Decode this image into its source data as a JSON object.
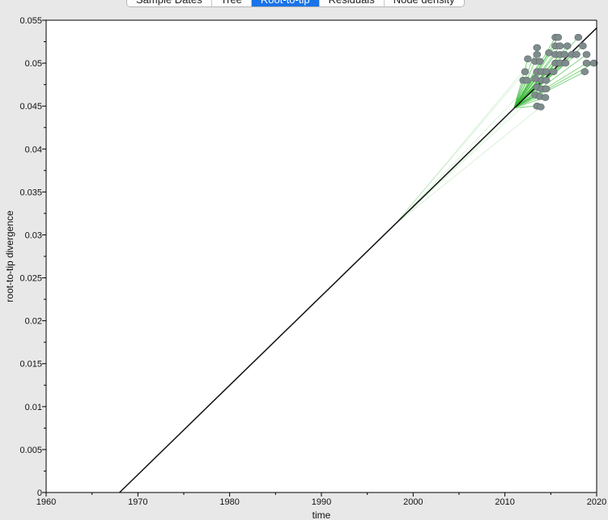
{
  "tabs": [
    {
      "label": "Sample Dates",
      "active": false
    },
    {
      "label": "Tree",
      "active": false
    },
    {
      "label": "Root-to-tip",
      "active": true
    },
    {
      "label": "Residuals",
      "active": false
    },
    {
      "label": "Node density",
      "active": false
    }
  ],
  "chart_data": {
    "type": "scatter",
    "xlabel": "time",
    "ylabel": "root-to-tip divergence",
    "xlim": [
      1960,
      2020
    ],
    "ylim": [
      0,
      0.055
    ],
    "xticks": [
      "1960",
      "1970",
      "1980",
      "1990",
      "2000",
      "2010",
      "2020"
    ],
    "yticks": [
      "0",
      "0.005",
      "0.01",
      "0.015",
      "0.02",
      "0.025",
      "0.03",
      "0.035",
      "0.04",
      "0.045",
      "0.05",
      "0.055"
    ],
    "grid": false,
    "regression_line": {
      "x": [
        1968.0,
        2020.0
      ],
      "y": [
        0.0,
        0.0541
      ]
    },
    "colors": {
      "points": "#7f8c8d",
      "point_edge": "#5f6b6b",
      "tree_edges": "#33b833",
      "regression": "#111111",
      "plot_bg": "#ffffff"
    },
    "ancestors": [
      {
        "x": 2011.0,
        "y": 0.0448
      },
      {
        "x": 1998.0,
        "y": 0.0312
      }
    ],
    "tips": [
      {
        "x": 2012.5,
        "y": 0.0505
      },
      {
        "x": 2012.2,
        "y": 0.049
      },
      {
        "x": 2012.0,
        "y": 0.048
      },
      {
        "x": 2012.4,
        "y": 0.048
      },
      {
        "x": 2013.5,
        "y": 0.0518
      },
      {
        "x": 2013.5,
        "y": 0.051
      },
      {
        "x": 2013.3,
        "y": 0.0502
      },
      {
        "x": 2013.8,
        "y": 0.0502
      },
      {
        "x": 2013.5,
        "y": 0.049
      },
      {
        "x": 2014.0,
        "y": 0.049
      },
      {
        "x": 2014.5,
        "y": 0.049
      },
      {
        "x": 2013.3,
        "y": 0.0482
      },
      {
        "x": 2014.0,
        "y": 0.048
      },
      {
        "x": 2014.5,
        "y": 0.048
      },
      {
        "x": 2013.5,
        "y": 0.0472
      },
      {
        "x": 2014.0,
        "y": 0.047
      },
      {
        "x": 2014.5,
        "y": 0.047
      },
      {
        "x": 2013.3,
        "y": 0.0463
      },
      {
        "x": 2013.8,
        "y": 0.0461
      },
      {
        "x": 2014.4,
        "y": 0.046
      },
      {
        "x": 2013.5,
        "y": 0.045
      },
      {
        "x": 2013.9,
        "y": 0.0449
      },
      {
        "x": 2014.8,
        "y": 0.0512
      },
      {
        "x": 2015.3,
        "y": 0.049
      },
      {
        "x": 2015.5,
        "y": 0.053
      },
      {
        "x": 2015.8,
        "y": 0.053
      },
      {
        "x": 2015.5,
        "y": 0.052
      },
      {
        "x": 2016.0,
        "y": 0.052
      },
      {
        "x": 2015.5,
        "y": 0.051
      },
      {
        "x": 2016.0,
        "y": 0.051
      },
      {
        "x": 2016.5,
        "y": 0.051
      },
      {
        "x": 2015.5,
        "y": 0.05
      },
      {
        "x": 2016.0,
        "y": 0.05
      },
      {
        "x": 2016.6,
        "y": 0.05
      },
      {
        "x": 2016.8,
        "y": 0.052
      },
      {
        "x": 2017.3,
        "y": 0.051
      },
      {
        "x": 2017.8,
        "y": 0.051
      },
      {
        "x": 2018.0,
        "y": 0.053
      },
      {
        "x": 2018.5,
        "y": 0.052
      },
      {
        "x": 2018.9,
        "y": 0.051
      },
      {
        "x": 2018.9,
        "y": 0.05
      },
      {
        "x": 2019.7,
        "y": 0.05
      },
      {
        "x": 2018.7,
        "y": 0.049
      }
    ]
  }
}
